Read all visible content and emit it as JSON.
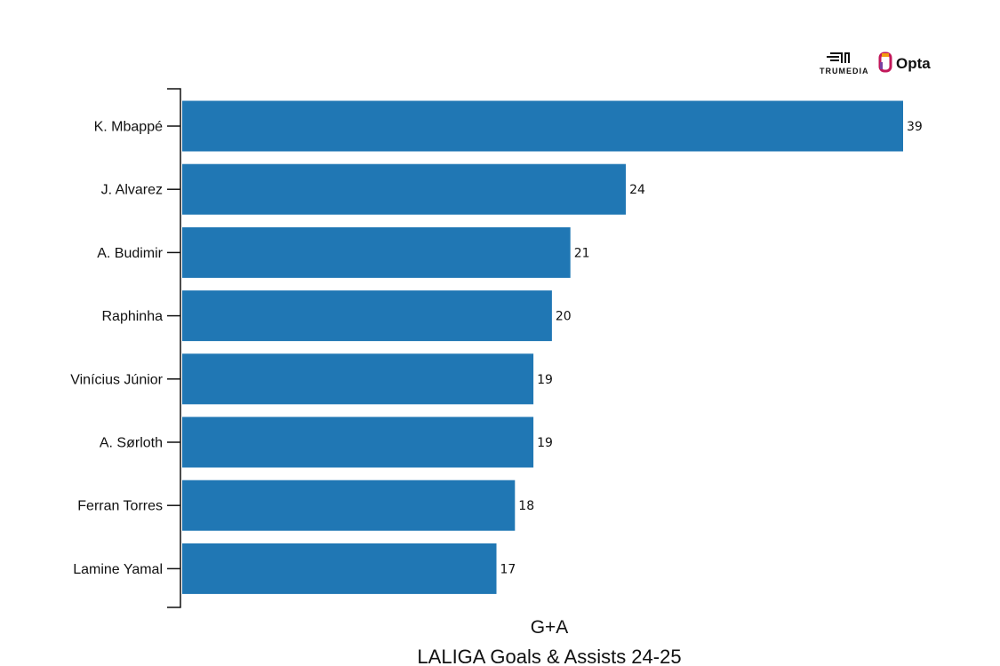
{
  "chart_data": {
    "type": "bar",
    "orientation": "horizontal",
    "categories": [
      "K. Mbappé",
      "J. Alvarez",
      "A. Budimir",
      "Raphinha",
      "Vinícius Júnior",
      "A. Sørloth",
      "Ferran Torres",
      "Lamine Yamal"
    ],
    "values": [
      39,
      24,
      21,
      20,
      19,
      19,
      18,
      17
    ],
    "xlabel": "G+A",
    "title": "LALIGA Goals & Assists 24-25",
    "xlim": [
      0,
      39
    ],
    "bar_color": "#2077b4"
  },
  "logos": {
    "trumedia": "TRUMEDIA",
    "opta": "Opta"
  }
}
